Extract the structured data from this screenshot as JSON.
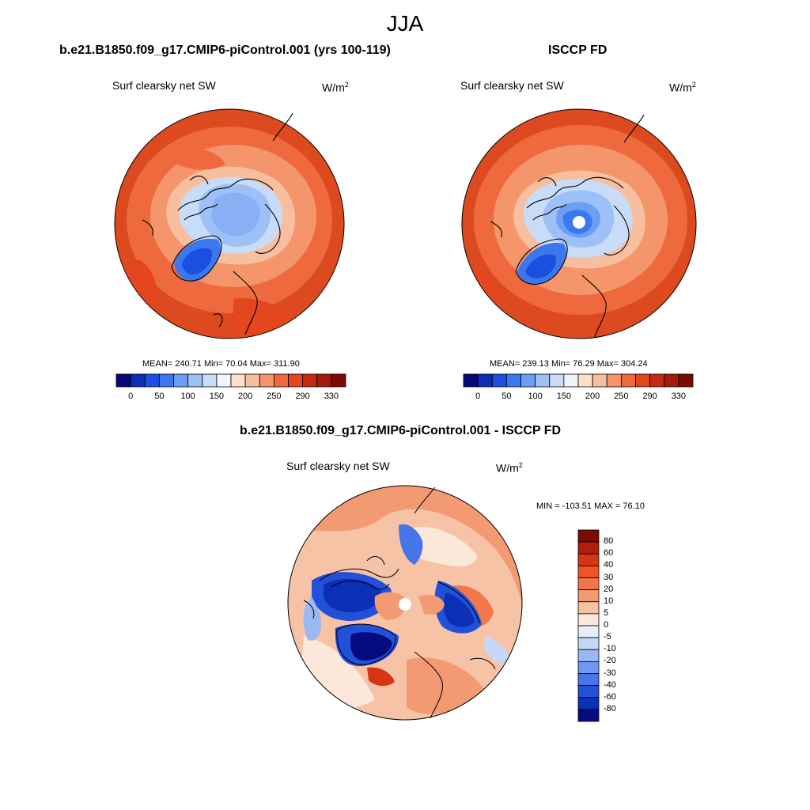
{
  "figure": {
    "season": "JJA"
  },
  "panels": [
    {
      "title": "b.e21.B1850.f09_g17.CMIP6-piControl.001 (yrs 100-119)",
      "variable": "Surf clearsky net SW",
      "units_base": "W/m",
      "units_exp": "2",
      "stats": "MEAN= 240.71  Min=  70.04  Max= 311.90"
    },
    {
      "title": "ISCCP FD",
      "variable": "Surf clearsky net SW",
      "units_base": "W/m",
      "units_exp": "2",
      "stats": "MEAN= 239.13  Min=  76.29  Max= 304.24"
    },
    {
      "title": "b.e21.B1850.f09_g17.CMIP6-piControl.001 - ISCCP FD",
      "variable": "Surf clearsky net SW",
      "units_base": "W/m",
      "units_exp": "2",
      "stats": "MIN = -103.51 MAX =  76.10"
    }
  ],
  "colorbar_abs": {
    "labels": [
      "0",
      "50",
      "100",
      "150",
      "200",
      "250",
      "290",
      "330"
    ],
    "colors": [
      "#08087a",
      "#0b2fb5",
      "#1a4fe0",
      "#3b78f0",
      "#6c9ef5",
      "#9dc0f7",
      "#c8dcf8",
      "#f2f4fb",
      "#fde0cc",
      "#f8bea0",
      "#f4956b",
      "#ee6a3e",
      "#e4461e",
      "#c52a10",
      "#a11d0a",
      "#7a0c03"
    ]
  },
  "colorbar_diff": {
    "labels": [
      "80",
      "60",
      "40",
      "30",
      "20",
      "10",
      "5",
      "0",
      "-5",
      "-10",
      "-20",
      "-30",
      "-40",
      "-60",
      "-80"
    ],
    "colors": [
      "#7a0c03",
      "#b01f0c",
      "#d63412",
      "#ef5424",
      "#f2774a",
      "#f39a73",
      "#f7c3a6",
      "#fce8da",
      "#e4eefa",
      "#c5d8f7",
      "#9ab9f3",
      "#6f98ee",
      "#4575e8",
      "#2350d8",
      "#0b2fb5",
      "#060b80"
    ]
  }
}
